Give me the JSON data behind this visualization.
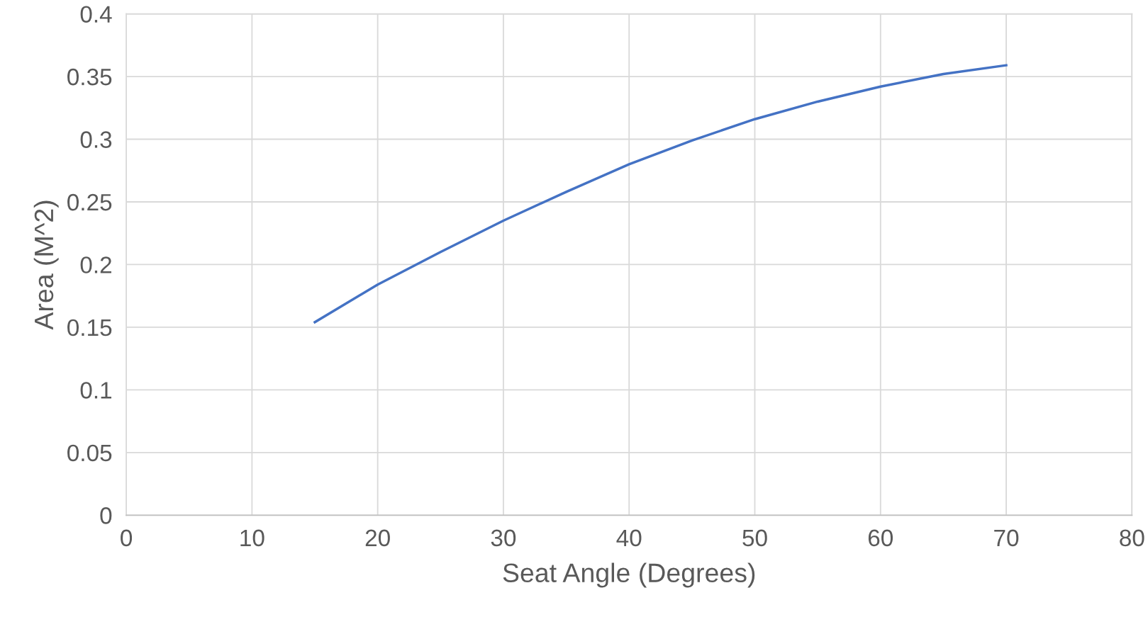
{
  "chart_data": {
    "type": "line",
    "xlabel": "Seat Angle (Degrees)",
    "ylabel": "Area (M^2)",
    "x": [
      15,
      20,
      25,
      30,
      35,
      40,
      45,
      50,
      55,
      60,
      65,
      70
    ],
    "series": [
      {
        "color": "#4472c4",
        "values": [
          0.154,
          0.184,
          0.21,
          0.235,
          0.258,
          0.28,
          0.299,
          0.316,
          0.33,
          0.342,
          0.352,
          0.359
        ]
      }
    ],
    "xlim": [
      0,
      80
    ],
    "xticks": [
      0,
      10,
      20,
      30,
      40,
      50,
      60,
      70,
      80
    ],
    "ylim": [
      0,
      0.4
    ],
    "yticks": [
      0,
      0.05,
      0.1,
      0.15,
      0.2,
      0.25,
      0.3,
      0.35,
      0.4
    ],
    "grid": true,
    "marker": "none",
    "line_style": "solid"
  }
}
